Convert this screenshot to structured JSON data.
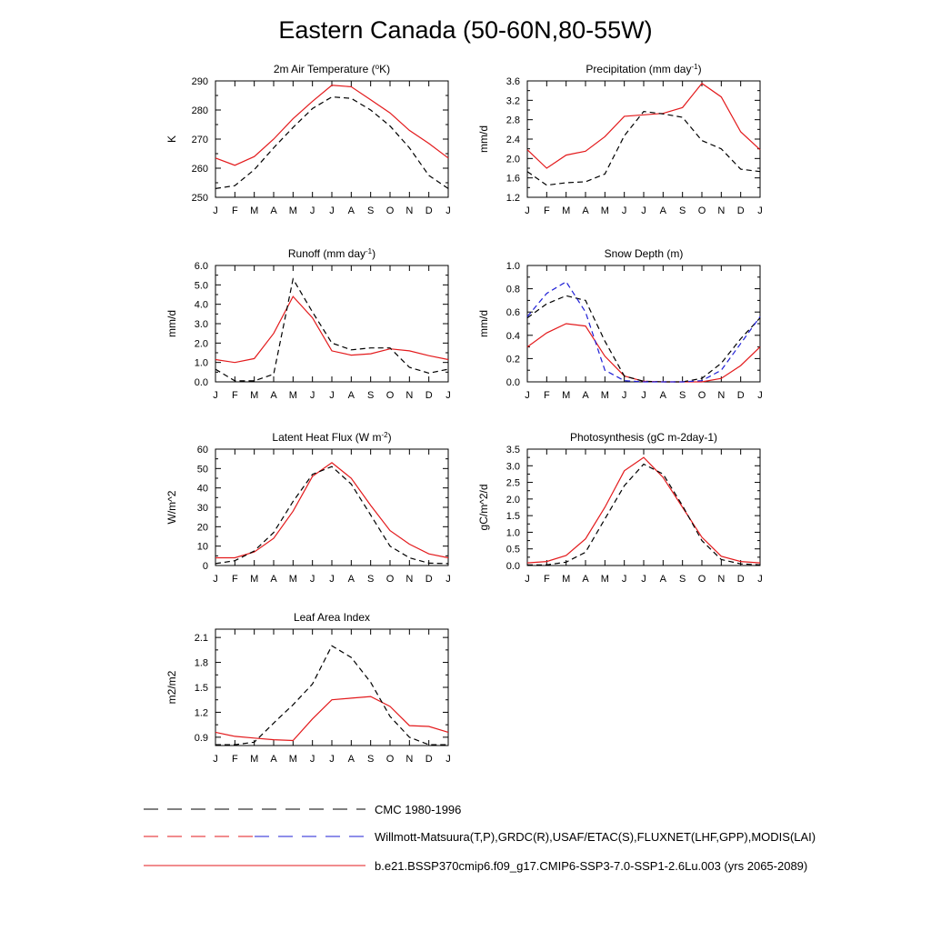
{
  "title": "Eastern Canada (50-60N,80-55W)",
  "months": [
    "J",
    "F",
    "M",
    "A",
    "M",
    "J",
    "J",
    "A",
    "S",
    "O",
    "N",
    "D",
    "J"
  ],
  "colors": {
    "model": "#e31a1c",
    "obs": "#000000",
    "obs_alt": "#1f1fd6"
  },
  "legend": {
    "items": [
      {
        "label": "CMC 1980-1996",
        "style": "dash-black"
      },
      {
        "label": "Willmott-Matsuura(T,P),GRDC(R),USAF/ETAC(S),FLUXNET(LHF,GPP),MODIS(LAI)",
        "style": "dash-red-blue"
      },
      {
        "label": "b.e21.BSSP370cmip6.f09_g17.CMIP6-SSP3-7.0-SSP1-2.6Lu.003 (yrs 2065-2089)",
        "style": "solid-red"
      }
    ]
  },
  "chart_data": [
    {
      "type": "line",
      "title": "2m Air Temperature (°K)",
      "ylabel": "K",
      "ylim": [
        250,
        290
      ],
      "yticks": [
        250,
        260,
        270,
        280,
        290
      ],
      "yticklabels": [
        "250",
        "260",
        "270",
        "280",
        "290"
      ],
      "x": [
        "J",
        "F",
        "M",
        "A",
        "M",
        "J",
        "J",
        "A",
        "S",
        "O",
        "N",
        "D",
        "J"
      ],
      "series": [
        {
          "style": "solid",
          "color": "#e31a1c",
          "values": [
            263.5,
            261,
            264,
            270,
            277,
            283,
            288.5,
            288,
            283.5,
            279,
            273,
            268.5,
            263.5
          ]
        },
        {
          "style": "dashed",
          "color": "#000000",
          "values": [
            253,
            254,
            259.5,
            267,
            274,
            280.5,
            284.5,
            284,
            280,
            274.5,
            267,
            257.5,
            253
          ]
        }
      ]
    },
    {
      "type": "line",
      "title": "Precipitation (mm day-1)",
      "ylabel": "mm/d",
      "ylim": [
        1.2,
        3.6
      ],
      "yticks": [
        1.2,
        1.6,
        2.0,
        2.4,
        2.8,
        3.2,
        3.6
      ],
      "yticklabels": [
        "1.2",
        "1.6",
        "2.0",
        "2.4",
        "2.8",
        "3.2",
        "3.6"
      ],
      "x": [
        "J",
        "F",
        "M",
        "A",
        "M",
        "J",
        "J",
        "A",
        "S",
        "O",
        "N",
        "D",
        "J"
      ],
      "series": [
        {
          "style": "solid",
          "color": "#e31a1c",
          "values": [
            2.18,
            1.8,
            2.07,
            2.15,
            2.45,
            2.87,
            2.9,
            2.93,
            3.05,
            3.55,
            3.27,
            2.55,
            2.18
          ]
        },
        {
          "style": "dashed",
          "color": "#000000",
          "values": [
            1.73,
            1.45,
            1.5,
            1.52,
            1.68,
            2.47,
            2.97,
            2.92,
            2.85,
            2.37,
            2.2,
            1.78,
            1.73
          ]
        }
      ]
    },
    {
      "type": "line",
      "title": "Runoff (mm day-1)",
      "ylabel": "mm/d",
      "ylim": [
        0,
        6
      ],
      "yticks": [
        0,
        1,
        2,
        3,
        4,
        5,
        6
      ],
      "yticklabels": [
        "0.0",
        "1.0",
        "2.0",
        "3.0",
        "4.0",
        "5.0",
        "6.0"
      ],
      "x": [
        "J",
        "F",
        "M",
        "A",
        "M",
        "J",
        "J",
        "A",
        "S",
        "O",
        "N",
        "D",
        "J"
      ],
      "series": [
        {
          "style": "solid",
          "color": "#e31a1c",
          "values": [
            1.15,
            1.0,
            1.2,
            2.5,
            4.4,
            3.3,
            1.6,
            1.38,
            1.45,
            1.7,
            1.6,
            1.35,
            1.15
          ]
        },
        {
          "style": "dashed",
          "color": "#000000",
          "values": [
            0.65,
            0.05,
            0.05,
            0.4,
            5.3,
            3.6,
            2.0,
            1.65,
            1.75,
            1.75,
            0.75,
            0.45,
            0.65
          ]
        }
      ]
    },
    {
      "type": "line",
      "title": "Snow Depth (m)",
      "ylabel": "mm/d",
      "ylim": [
        0,
        1.0
      ],
      "yticks": [
        0,
        0.2,
        0.4,
        0.6,
        0.8,
        1.0
      ],
      "yticklabels": [
        "0.0",
        "0.2",
        "0.4",
        "0.6",
        "0.8",
        "1.0"
      ],
      "x": [
        "J",
        "F",
        "M",
        "A",
        "M",
        "J",
        "J",
        "A",
        "S",
        "O",
        "N",
        "D",
        "J"
      ],
      "series": [
        {
          "style": "solid",
          "color": "#e31a1c",
          "values": [
            0.3,
            0.42,
            0.5,
            0.48,
            0.22,
            0.05,
            0.005,
            0.0,
            0.0,
            0.0,
            0.03,
            0.14,
            0.3
          ]
        },
        {
          "style": "dashed",
          "color": "#000000",
          "values": [
            0.55,
            0.67,
            0.74,
            0.7,
            0.35,
            0.05,
            0.005,
            0.0,
            0.0,
            0.03,
            0.16,
            0.37,
            0.55
          ]
        },
        {
          "style": "dashed",
          "color": "#1f1fd6",
          "values": [
            0.56,
            0.76,
            0.86,
            0.6,
            0.1,
            0.01,
            0.0,
            0.0,
            0.0,
            0.01,
            0.1,
            0.33,
            0.56
          ]
        }
      ]
    },
    {
      "type": "line",
      "title": "Latent Heat Flux (W m-2)",
      "ylabel": "W/m^2",
      "ylim": [
        0,
        60
      ],
      "yticks": [
        0,
        10,
        20,
        30,
        40,
        50,
        60
      ],
      "yticklabels": [
        "0",
        "10",
        "20",
        "30",
        "40",
        "50",
        "60"
      ],
      "x": [
        "J",
        "F",
        "M",
        "A",
        "M",
        "J",
        "J",
        "A",
        "S",
        "O",
        "N",
        "D",
        "J"
      ],
      "series": [
        {
          "style": "solid",
          "color": "#e31a1c",
          "values": [
            4,
            4,
            7,
            14,
            28,
            46,
            53,
            45,
            31,
            18,
            11,
            6,
            4
          ]
        },
        {
          "style": "dashed",
          "color": "#000000",
          "values": [
            1,
            2.5,
            7.5,
            17,
            33,
            47,
            51,
            42,
            26,
            10,
            4,
            1.2,
            1
          ]
        }
      ]
    },
    {
      "type": "line",
      "title": "Photosynthesis (gC m-2day-1)",
      "ylabel": "gC/m^2/d",
      "ylim": [
        0,
        3.5
      ],
      "yticks": [
        0,
        0.5,
        1.0,
        1.5,
        2.0,
        2.5,
        3.0,
        3.5
      ],
      "yticklabels": [
        "0.0",
        "0.5",
        "1.0",
        "1.5",
        "2.0",
        "2.5",
        "3.0",
        "3.5"
      ],
      "x": [
        "J",
        "F",
        "M",
        "A",
        "M",
        "J",
        "J",
        "A",
        "S",
        "O",
        "N",
        "D",
        "J"
      ],
      "series": [
        {
          "style": "solid",
          "color": "#e31a1c",
          "values": [
            0.08,
            0.12,
            0.3,
            0.8,
            1.75,
            2.85,
            3.25,
            2.65,
            1.75,
            0.85,
            0.28,
            0.12,
            0.08
          ]
        },
        {
          "style": "dashed",
          "color": "#000000",
          "values": [
            0.02,
            0.02,
            0.1,
            0.4,
            1.4,
            2.4,
            3.05,
            2.75,
            1.8,
            0.75,
            0.18,
            0.05,
            0.02
          ]
        }
      ]
    },
    {
      "type": "line",
      "title": "Leaf Area Index",
      "ylabel": "m2/m2",
      "ylim": [
        0.8,
        2.2
      ],
      "yticks": [
        0.9,
        1.2,
        1.5,
        1.8,
        2.1
      ],
      "yticklabels": [
        "0.9",
        "1.2",
        "1.5",
        "1.8",
        "2.1"
      ],
      "x": [
        "J",
        "F",
        "M",
        "A",
        "M",
        "J",
        "J",
        "A",
        "S",
        "O",
        "N",
        "D",
        "J"
      ],
      "series": [
        {
          "style": "solid",
          "color": "#e31a1c",
          "values": [
            0.96,
            0.91,
            0.89,
            0.87,
            0.86,
            1.12,
            1.35,
            1.37,
            1.39,
            1.27,
            1.04,
            1.03,
            0.96
          ]
        },
        {
          "style": "dashed",
          "color": "#000000",
          "values": [
            0.81,
            0.81,
            0.84,
            1.07,
            1.29,
            1.54,
            2.0,
            1.86,
            1.56,
            1.15,
            0.9,
            0.81,
            0.81
          ]
        }
      ]
    }
  ]
}
